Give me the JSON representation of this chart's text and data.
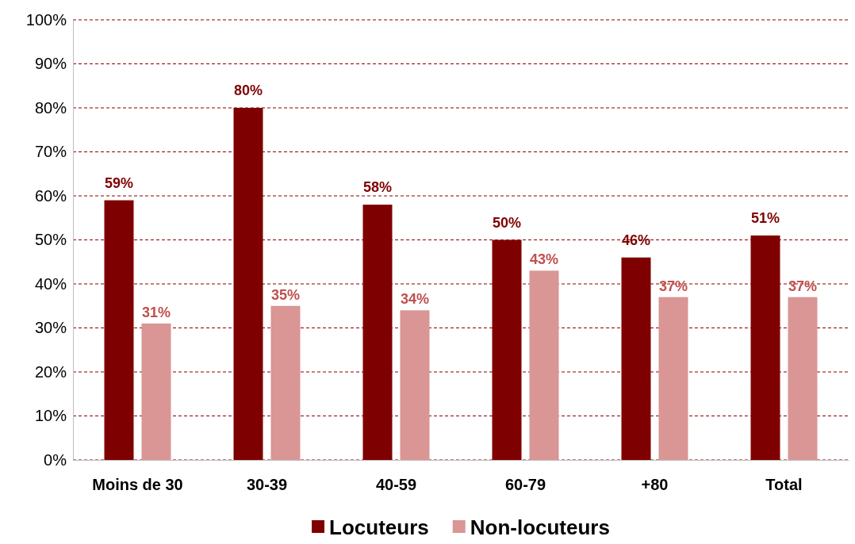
{
  "chart_data": {
    "type": "bar",
    "categories": [
      "Moins de 30",
      "30-39",
      "40-59",
      "60-79",
      "+80",
      "Total"
    ],
    "series": [
      {
        "name": "Locuteurs",
        "color": "#7f0000",
        "values": [
          59,
          80,
          58,
          50,
          46,
          51
        ],
        "value_labels": [
          "59%",
          "80%",
          "58%",
          "50%",
          "46%",
          "51%"
        ]
      },
      {
        "name": "Non-locuteurs",
        "color": "#d99694",
        "values": [
          31,
          35,
          34,
          43,
          37,
          37
        ],
        "value_labels": [
          "31%",
          "35%",
          "34%",
          "43%",
          "37%",
          "37%"
        ]
      }
    ],
    "ylim": [
      0,
      100
    ],
    "yticks": [
      {
        "value": 0,
        "label": "0%"
      },
      {
        "value": 10,
        "label": "10%"
      },
      {
        "value": 20,
        "label": "20%"
      },
      {
        "value": 30,
        "label": "30%"
      },
      {
        "value": 40,
        "label": "40%"
      },
      {
        "value": 50,
        "label": "50%"
      },
      {
        "value": 60,
        "label": "60%"
      },
      {
        "value": 70,
        "label": "70%"
      },
      {
        "value": 80,
        "label": "80%"
      },
      {
        "value": 90,
        "label": "90%"
      },
      {
        "value": 100,
        "label": "100%"
      }
    ],
    "grid": "y",
    "legend": "bottom"
  }
}
